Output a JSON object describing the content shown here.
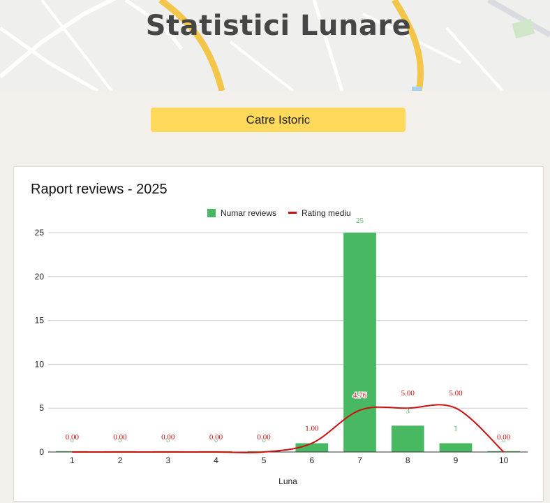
{
  "page": {
    "title": "Statistici Lunare"
  },
  "button": {
    "label": "Catre Istoric"
  },
  "colors": {
    "bars": "#49b862",
    "line": "#cc1010",
    "button": "#ffd95c",
    "background": "#f3f0ec"
  },
  "chart_data": {
    "type": "bar",
    "title": "Raport reviews - 2025",
    "xlabel": "Luna",
    "ylabel": "",
    "ylim": [
      0,
      25
    ],
    "yticks": [
      0,
      5,
      10,
      15,
      20,
      25
    ],
    "categories": [
      "1",
      "2",
      "3",
      "4",
      "5",
      "6",
      "7",
      "8",
      "9",
      "10"
    ],
    "grid": true,
    "legend_position": "top",
    "series": [
      {
        "name": "Numar reviews",
        "type": "bar",
        "color": "#49b862",
        "values": [
          0,
          0,
          0,
          0,
          0,
          1,
          25,
          3,
          1,
          0
        ],
        "labels": [
          "0",
          "0",
          "0",
          "0",
          "0",
          "1",
          "25",
          "3",
          "1",
          "0"
        ]
      },
      {
        "name": "Rating mediu",
        "type": "line",
        "smooth": true,
        "color": "#cc1010",
        "values": [
          0,
          0,
          0,
          0,
          0,
          1,
          4.76,
          5,
          5,
          0
        ],
        "labels": [
          "0.00",
          "0.00",
          "0.00",
          "0.00",
          "0.00",
          "1.00",
          "4.76",
          "5.00",
          "5.00",
          "0.00"
        ]
      }
    ]
  }
}
